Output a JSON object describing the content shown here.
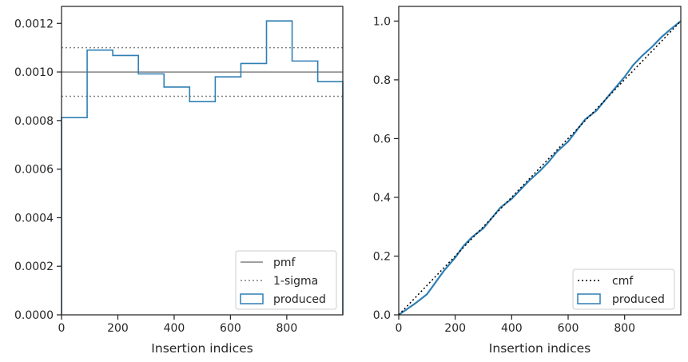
{
  "chart_data": [
    {
      "type": "step",
      "xlabel": "Insertion indices",
      "ylabel": "",
      "xlim": [
        0,
        999
      ],
      "ylim": [
        0,
        0.00127
      ],
      "xticks": [
        0,
        200,
        400,
        600,
        800
      ],
      "xtick_labels": [
        "0",
        "200",
        "400",
        "600",
        "800"
      ],
      "yticks": [
        0,
        0.0002,
        0.0004,
        0.0006,
        0.0008,
        0.001,
        0.0012
      ],
      "ytick_labels": [
        "0.0000",
        "0.0002",
        "0.0004",
        "0.0006",
        "0.0008",
        "0.0010",
        "0.0012"
      ],
      "grid": false,
      "legend_position": "lower-right",
      "pmf": {
        "name": "pmf",
        "value": 0.001,
        "color": "#808080",
        "style": "solid"
      },
      "sigma": {
        "name": "1-sigma",
        "values": [
          0.0011,
          0.0009
        ],
        "color": "#808080",
        "style": "dotted"
      },
      "produced": {
        "name": "produced",
        "color": "#2f7fb5",
        "bin_edges": [
          0,
          91,
          182,
          273,
          364,
          455,
          546,
          637,
          728,
          819,
          910,
          999
        ],
        "values": [
          0.000812,
          0.00109,
          0.001068,
          0.000992,
          0.000938,
          0.000878,
          0.00098,
          0.001035,
          0.00121,
          0.001045,
          0.00096
        ]
      }
    },
    {
      "type": "line",
      "xlabel": "Insertion indices",
      "ylabel": "",
      "xlim": [
        0,
        999
      ],
      "ylim": [
        0,
        1.05
      ],
      "xticks": [
        0,
        200,
        400,
        600,
        800
      ],
      "xtick_labels": [
        "0",
        "200",
        "400",
        "600",
        "800"
      ],
      "yticks": [
        0,
        0.2,
        0.4,
        0.6,
        0.8,
        1.0
      ],
      "ytick_labels": [
        "0.0",
        "0.2",
        "0.4",
        "0.6",
        "0.8",
        "1.0"
      ],
      "grid": false,
      "legend_position": "lower-right",
      "cmf": {
        "name": "cmf",
        "x": [
          0,
          999
        ],
        "y": [
          0,
          1.0
        ],
        "color": "#000000",
        "style": "dotted"
      },
      "produced": {
        "name": "produced",
        "color": "#2f7fb5",
        "x": [
          0,
          30,
          60,
          80,
          100,
          130,
          160,
          200,
          230,
          260,
          300,
          330,
          360,
          400,
          430,
          460,
          500,
          530,
          560,
          600,
          620,
          640,
          660,
          700,
          730,
          760,
          800,
          830,
          860,
          900,
          930,
          960,
          999
        ],
        "y": [
          0,
          0.02,
          0.04,
          0.055,
          0.07,
          0.11,
          0.15,
          0.195,
          0.235,
          0.265,
          0.295,
          0.33,
          0.365,
          0.395,
          0.425,
          0.455,
          0.49,
          0.52,
          0.555,
          0.59,
          0.615,
          0.64,
          0.665,
          0.695,
          0.73,
          0.765,
          0.81,
          0.85,
          0.88,
          0.915,
          0.945,
          0.97,
          1.0
        ]
      }
    }
  ]
}
